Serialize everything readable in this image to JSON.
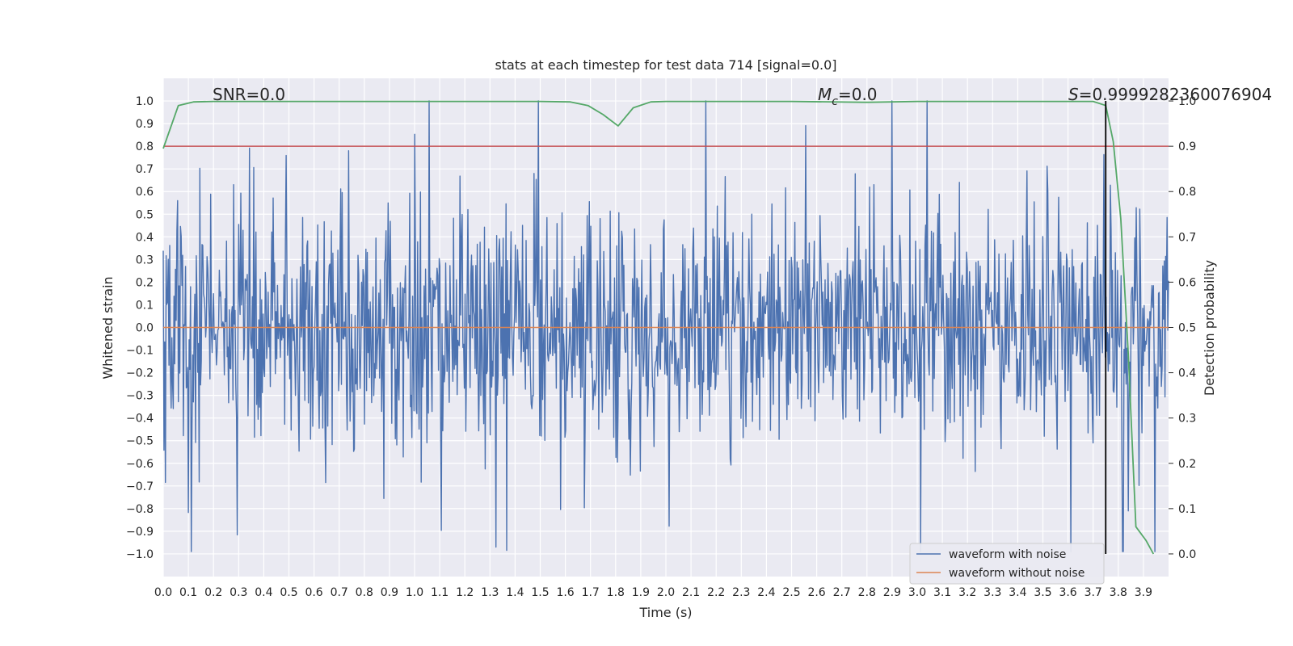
{
  "chart_data": {
    "type": "line",
    "title": "stats at each timestep for test data 714 [signal=0.0]",
    "xlabel": "Time (s)",
    "ylabel_left": "Whitened strain",
    "ylabel_right": "Detection probability",
    "xlim": [
      0.0,
      4.0
    ],
    "ylim_left": [
      -1.1,
      1.1
    ],
    "ylim_right": [
      -0.05,
      1.05
    ],
    "x_ticks": [
      "0.0",
      "0.1",
      "0.2",
      "0.3",
      "0.4",
      "0.5",
      "0.6",
      "0.7",
      "0.8",
      "0.9",
      "1.0",
      "1.1",
      "1.2",
      "1.3",
      "1.4",
      "1.5",
      "1.6",
      "1.7",
      "1.8",
      "1.9",
      "2.0",
      "2.1",
      "2.2",
      "2.3",
      "2.4",
      "2.5",
      "2.6",
      "2.7",
      "2.8",
      "2.9",
      "3.0",
      "3.1",
      "3.2",
      "3.3",
      "3.4",
      "3.5",
      "3.6",
      "3.7",
      "3.8",
      "3.9"
    ],
    "y_ticks_left": [
      "1.0",
      "0.9",
      "0.8",
      "0.7",
      "0.6",
      "0.5",
      "0.4",
      "0.3",
      "0.2",
      "0.1",
      "0.0",
      "-0.1",
      "-0.2",
      "-0.3",
      "-0.4",
      "-0.5",
      "-0.6",
      "-0.7",
      "-0.8",
      "-0.9",
      "-1.0"
    ],
    "y_ticks_right": [
      "1.0",
      "0.9",
      "0.8",
      "0.7",
      "0.6",
      "0.5",
      "0.4",
      "0.3",
      "0.2",
      "0.1",
      "0.0"
    ],
    "annotations": {
      "snr": "SNR=0.0",
      "mc_symbol": "M",
      "mc_subscript": "c",
      "mc_value": "=0.0",
      "s_symbol": "S",
      "s_value": "=0.9999282360076904"
    },
    "series": [
      {
        "name": "waveform with noise",
        "color": "#4c72b0",
        "axis": "left",
        "description": "noisy whitened strain, amplitude roughly within -1.0 to 1.0"
      },
      {
        "name": "waveform without noise",
        "color": "#dd8452",
        "axis": "left",
        "values_constant": 0.0
      },
      {
        "name": "detection probability",
        "color": "#55a868",
        "axis": "right",
        "x": [
          0.0,
          0.06,
          0.12,
          0.2,
          0.5,
          1.0,
          1.5,
          1.62,
          1.69,
          1.75,
          1.81,
          1.87,
          1.94,
          2.0,
          2.5,
          2.8,
          3.0,
          3.5,
          3.7,
          3.75,
          3.78,
          3.81,
          3.84,
          3.87,
          3.91,
          3.94
        ],
        "y": [
          0.895,
          0.99,
          0.998,
          0.999,
          0.999,
          0.999,
          0.999,
          0.998,
          0.99,
          0.97,
          0.945,
          0.985,
          0.998,
          0.999,
          0.999,
          0.997,
          0.999,
          0.999,
          0.999,
          0.99,
          0.91,
          0.74,
          0.44,
          0.06,
          0.03,
          0.0
        ]
      }
    ],
    "threshold": {
      "axis": "right",
      "value": 0.9,
      "color": "#c44e52"
    },
    "marker_line": {
      "x": 3.75,
      "color": "#000000"
    },
    "legend": {
      "placement": "bottom-right",
      "entries": [
        {
          "label": "waveform with noise",
          "color": "#4c72b0"
        },
        {
          "label": "waveform without noise",
          "color": "#dd8452"
        }
      ]
    },
    "colors": {
      "plot_bg": "#eaeaf2",
      "grid": "#ffffff"
    }
  }
}
